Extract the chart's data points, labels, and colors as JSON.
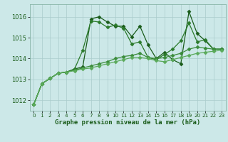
{
  "title": "Graphe pression niveau de la mer (hPa)",
  "background_color": "#cce8e8",
  "grid_color": "#aacccc",
  "text_color": "#1a5c1a",
  "xlim": [
    -0.5,
    23.5
  ],
  "ylim": [
    1011.5,
    1016.6
  ],
  "yticks": [
    1012,
    1013,
    1014,
    1015,
    1016
  ],
  "xticks": [
    0,
    1,
    2,
    3,
    4,
    5,
    6,
    7,
    8,
    9,
    10,
    11,
    12,
    13,
    14,
    15,
    16,
    17,
    18,
    19,
    20,
    21,
    22,
    23
  ],
  "series": [
    {
      "x": [
        0,
        1,
        2,
        3,
        4,
        5,
        6,
        7,
        8,
        9,
        10,
        11,
        12,
        13,
        14,
        15,
        16,
        17,
        18,
        19,
        20,
        21,
        22,
        23
      ],
      "y": [
        1011.8,
        1012.8,
        1013.05,
        1013.3,
        1013.35,
        1013.5,
        1013.6,
        1015.9,
        1016.0,
        1015.75,
        1015.55,
        1015.55,
        1015.05,
        1015.55,
        1014.65,
        1014.0,
        1014.3,
        1013.95,
        1013.75,
        1016.25,
        1015.2,
        1014.85,
        1014.45,
        1014.45
      ],
      "color": "#1a5c1a",
      "marker": "D",
      "markersize": 2.5,
      "lw": 0.9
    },
    {
      "x": [
        0,
        1,
        2,
        3,
        4,
        5,
        6,
        7,
        8,
        9,
        10,
        11,
        12,
        13,
        14,
        15,
        16,
        17,
        18,
        19,
        20,
        21,
        22,
        23
      ],
      "y": [
        1011.8,
        1012.8,
        1013.05,
        1013.3,
        1013.35,
        1013.5,
        1014.4,
        1015.8,
        1015.75,
        1015.5,
        1015.6,
        1015.45,
        1014.7,
        1014.8,
        1014.05,
        1013.95,
        1014.2,
        1014.45,
        1014.85,
        1015.7,
        1014.8,
        1014.9,
        1014.45,
        1014.45
      ],
      "color": "#2a7a2a",
      "marker": "D",
      "markersize": 2.5,
      "lw": 0.9
    },
    {
      "x": [
        0,
        1,
        2,
        3,
        4,
        5,
        6,
        7,
        8,
        9,
        10,
        11,
        12,
        13,
        14,
        15,
        16,
        17,
        18,
        19,
        20,
        21,
        22,
        23
      ],
      "y": [
        1011.8,
        1012.8,
        1013.05,
        1013.3,
        1013.35,
        1013.45,
        1013.55,
        1013.65,
        1013.75,
        1013.85,
        1014.0,
        1014.1,
        1014.15,
        1014.25,
        1014.05,
        1014.0,
        1014.05,
        1014.15,
        1014.25,
        1014.45,
        1014.55,
        1014.5,
        1014.45,
        1014.45
      ],
      "color": "#3a8c3a",
      "marker": "D",
      "markersize": 2.5,
      "lw": 0.9
    },
    {
      "x": [
        0,
        1,
        2,
        3,
        4,
        5,
        6,
        7,
        8,
        9,
        10,
        11,
        12,
        13,
        14,
        15,
        16,
        17,
        18,
        19,
        20,
        21,
        22,
        23
      ],
      "y": [
        1011.8,
        1012.8,
        1013.05,
        1013.3,
        1013.35,
        1013.42,
        1013.5,
        1013.55,
        1013.65,
        1013.75,
        1013.85,
        1013.95,
        1014.05,
        1014.05,
        1014.0,
        1013.9,
        1013.85,
        1013.95,
        1014.05,
        1014.15,
        1014.25,
        1014.3,
        1014.35,
        1014.4
      ],
      "color": "#5aaa5a",
      "marker": "D",
      "markersize": 2.5,
      "lw": 0.9
    }
  ],
  "title_fontsize": 6.5,
  "ytick_fontsize": 6.0,
  "xtick_fontsize": 5.2
}
